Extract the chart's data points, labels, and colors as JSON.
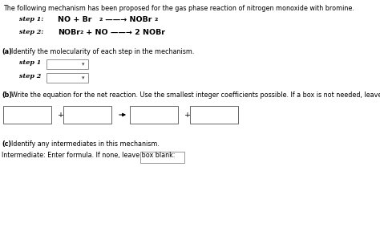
{
  "title_text": "The following mechanism has been proposed for the gas phase reaction of nitrogen monoxide with bromine.",
  "step1_label": "step 1:",
  "step2_label": "step 2:",
  "part_a_label": "(a)",
  "part_a_text": "Identify the molecularity of each step in the mechanism.",
  "part_b_label": "(b)",
  "part_b_text": "Write the equation for the net reaction. Use the smallest integer coefficients possible. If a box is not needed, leave it blank.",
  "part_c_label": "(c)",
  "part_c_text": "Identify any intermediates in this mechanism.",
  "intermediate_text": "Intermediate: Enter formula. If none, leave box blank:",
  "bg_color": "#ffffff",
  "text_color": "#000000",
  "box_edge_color": "#808080",
  "title_fontsize": 5.8,
  "label_fontsize": 5.8,
  "eq_fontsize": 6.8,
  "sub_fontsize": 4.5
}
